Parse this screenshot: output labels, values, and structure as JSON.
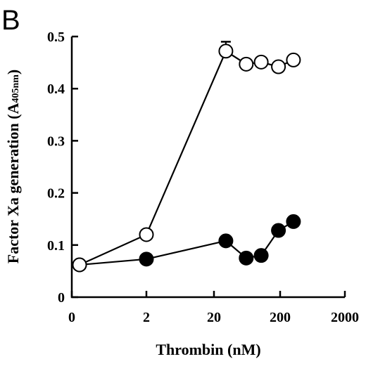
{
  "panel_label": "B",
  "chart_data": {
    "type": "line",
    "title": "",
    "xlabel": "Thrombin (nM)",
    "ylabel_main": "Factor Xa generation (A",
    "ylabel_sub": "405nm",
    "ylabel_close": ")",
    "x_scale": "log-ordinal",
    "x_ticks": [
      "0",
      "2",
      "20",
      "200",
      "2000"
    ],
    "y_ticks": [
      "0",
      "0.1",
      "0.2",
      "0.3",
      "0.4",
      "0.5"
    ],
    "ylim": [
      0,
      0.5
    ],
    "grid": false,
    "legend": "none",
    "series": [
      {
        "marker": "open-circle",
        "x": [
          0,
          2,
          30,
          60,
          100,
          180,
          300
        ],
        "y": [
          0.062,
          0.12,
          0.472,
          0.447,
          0.451,
          0.442,
          0.455
        ],
        "error_top": [
          null,
          null,
          0.49,
          null,
          null,
          null,
          null
        ]
      },
      {
        "marker": "filled-circle",
        "x": [
          0,
          2,
          30,
          60,
          100,
          180,
          300
        ],
        "y": [
          0.062,
          0.073,
          0.108,
          0.075,
          0.08,
          0.128,
          0.145
        ],
        "error_top": [
          null,
          null,
          null,
          null,
          null,
          null,
          null
        ]
      }
    ]
  }
}
